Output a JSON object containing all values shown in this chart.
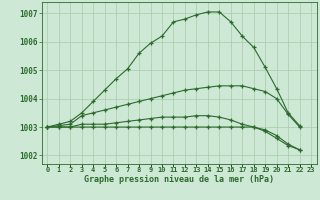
{
  "title": "Graphe pression niveau de la mer (hPa)",
  "hours": [
    0,
    1,
    2,
    3,
    4,
    5,
    6,
    7,
    8,
    9,
    10,
    11,
    12,
    13,
    14,
    15,
    16,
    17,
    18,
    19,
    20,
    21,
    22,
    23
  ],
  "y1": [
    1003.0,
    1003.1,
    1003.2,
    1003.5,
    1003.9,
    1004.3,
    1004.7,
    1005.05,
    1005.6,
    1005.95,
    1006.2,
    1006.7,
    1006.8,
    1006.95,
    1007.05,
    1007.05,
    1006.7,
    1006.2,
    1005.8,
    1005.1,
    1004.35,
    1003.5,
    1003.05,
    null
  ],
  "y2": [
    1003.0,
    1003.05,
    1003.1,
    1003.4,
    1003.5,
    1003.6,
    1003.7,
    1003.8,
    1003.9,
    1004.0,
    1004.1,
    1004.2,
    1004.3,
    1004.35,
    1004.4,
    1004.45,
    1004.45,
    1004.45,
    1004.35,
    1004.25,
    1004.0,
    1003.45,
    1003.0,
    null
  ],
  "y3": [
    1003.0,
    1003.0,
    1003.0,
    1003.1,
    1003.1,
    1003.1,
    1003.15,
    1003.2,
    1003.25,
    1003.3,
    1003.35,
    1003.35,
    1003.35,
    1003.4,
    1003.4,
    1003.35,
    1003.25,
    1003.1,
    1003.0,
    1002.85,
    1002.6,
    1002.35,
    1002.2,
    null
  ],
  "y4": [
    1003.0,
    1003.0,
    1003.0,
    1003.0,
    1003.0,
    1003.0,
    1003.0,
    1003.0,
    1003.0,
    1003.0,
    1003.0,
    1003.0,
    1003.0,
    1003.0,
    1003.0,
    1003.0,
    1003.0,
    1003.0,
    1003.0,
    1002.9,
    1002.7,
    1002.4,
    1002.2,
    null
  ],
  "ylim": [
    1001.7,
    1007.4
  ],
  "yticks": [
    1002,
    1003,
    1004,
    1005,
    1006,
    1007
  ],
  "line_color": "#2d6a2d",
  "bg_color": "#cde8d4",
  "grid_color": "#aacaaa",
  "marker": "+"
}
